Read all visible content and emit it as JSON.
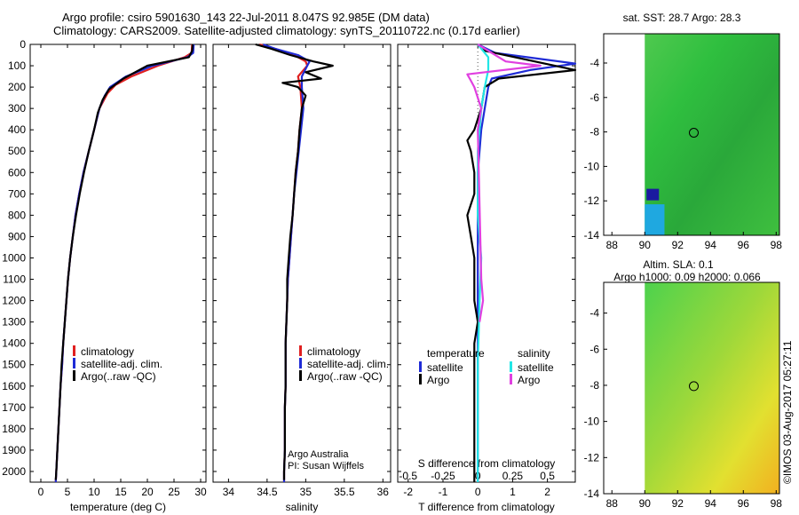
{
  "header": {
    "line1": "Argo profile: csiro 5901630_143 22-Jul-2011 8.047S 92.985E (DM data)",
    "line2": "Climatology: CARS2009. Satellite-adjusted climatology: synTS_20110722.nc (0.17d earlier)"
  },
  "colors": {
    "climatology": "#e02020",
    "satellite": "#1f2bd6",
    "argo": "#000000",
    "sal_satellite": "#22e6e6",
    "sal_argo": "#e040e0"
  },
  "depth_ticks": [
    0,
    100,
    200,
    300,
    400,
    500,
    600,
    700,
    800,
    900,
    1000,
    1100,
    1200,
    1300,
    1400,
    1500,
    1600,
    1700,
    1800,
    1900,
    2000
  ],
  "chart_data": [
    {
      "type": "line",
      "id": "temperature",
      "xlabel": "temperature (deg C)",
      "xlim": [
        -2,
        31
      ],
      "ylim": [
        2050,
        0
      ],
      "xticks": [
        0,
        5,
        10,
        15,
        20,
        25,
        30
      ],
      "legend": [
        "climatology",
        "satellite-adj. clim.",
        "Argo(..raw -QC)"
      ],
      "series": [
        {
          "name": "climatology",
          "color": "#e02020",
          "points": [
            [
              28.4,
              0
            ],
            [
              28.3,
              40
            ],
            [
              27,
              60
            ],
            [
              22,
              100
            ],
            [
              17,
              150
            ],
            [
              14,
              190
            ],
            [
              12.5,
              230
            ],
            [
              11,
              300
            ],
            [
              10,
              400
            ],
            [
              9,
              500
            ],
            [
              8,
              600
            ],
            [
              7.2,
              700
            ],
            [
              6.5,
              800
            ],
            [
              6,
              900
            ],
            [
              5.5,
              1000
            ],
            [
              5.1,
              1100
            ],
            [
              4.8,
              1200
            ],
            [
              4.5,
              1300
            ],
            [
              4.2,
              1400
            ],
            [
              4,
              1500
            ],
            [
              3.7,
              1600
            ],
            [
              3.5,
              1700
            ],
            [
              3.3,
              1800
            ],
            [
              3.1,
              1900
            ],
            [
              2.9,
              2000
            ],
            [
              2.8,
              2050
            ]
          ]
        },
        {
          "name": "satellite-adj. clim.",
          "color": "#1f2bd6",
          "points": [
            [
              28.7,
              0
            ],
            [
              28.6,
              40
            ],
            [
              27.5,
              60
            ],
            [
              21,
              100
            ],
            [
              16,
              150
            ],
            [
              13,
              200
            ],
            [
              12,
              240
            ],
            [
              11,
              300
            ],
            [
              10,
              400
            ],
            [
              9,
              500
            ],
            [
              8,
              600
            ],
            [
              7.2,
              700
            ],
            [
              6.5,
              800
            ],
            [
              6,
              900
            ],
            [
              5.5,
              1000
            ],
            [
              5.1,
              1100
            ],
            [
              4.8,
              1200
            ],
            [
              4.5,
              1300
            ],
            [
              4.2,
              1400
            ],
            [
              4,
              1500
            ],
            [
              3.7,
              1600
            ],
            [
              3.5,
              1700
            ],
            [
              3.3,
              1800
            ],
            [
              3.1,
              1900
            ],
            [
              2.9,
              2000
            ],
            [
              2.8,
              2050
            ]
          ]
        },
        {
          "name": "Argo(..raw -QC)",
          "color": "#000000",
          "points": [
            [
              28.5,
              0
            ],
            [
              28.4,
              30
            ],
            [
              27.8,
              60
            ],
            [
              20,
              100
            ],
            [
              15.5,
              160
            ],
            [
              12.8,
              210
            ],
            [
              11.6,
              260
            ],
            [
              10.7,
              320
            ],
            [
              10,
              400
            ],
            [
              9,
              500
            ],
            [
              8.1,
              600
            ],
            [
              7.3,
              700
            ],
            [
              6.6,
              800
            ],
            [
              6,
              900
            ],
            [
              5.5,
              1000
            ],
            [
              5.1,
              1100
            ],
            [
              4.8,
              1200
            ],
            [
              4.5,
              1300
            ],
            [
              4.2,
              1400
            ],
            [
              3.9,
              1500
            ],
            [
              3.7,
              1600
            ],
            [
              3.5,
              1700
            ],
            [
              3.3,
              1800
            ],
            [
              3.1,
              1900
            ],
            [
              2.9,
              2000
            ],
            [
              2.8,
              2040
            ]
          ]
        }
      ]
    },
    {
      "type": "line",
      "id": "salinity",
      "xlabel": "salinity",
      "xlim": [
        33.8,
        36.1
      ],
      "ylim": [
        2050,
        0
      ],
      "xticks": [
        34,
        34.5,
        35,
        35.5,
        36
      ],
      "legend": [
        "climatology",
        "satellite-adj. clim.",
        "Argo(..raw -QC)"
      ],
      "annotations": [
        "Argo Australia",
        "PI: Susan Wijffels"
      ],
      "series": [
        {
          "name": "climatology",
          "color": "#e02020",
          "points": [
            [
              34.4,
              0
            ],
            [
              34.6,
              20
            ],
            [
              34.85,
              50
            ],
            [
              35.0,
              80
            ],
            [
              35.02,
              100
            ],
            [
              34.9,
              150
            ],
            [
              34.93,
              200
            ],
            [
              34.95,
              300
            ],
            [
              34.92,
              400
            ],
            [
              34.9,
              500
            ],
            [
              34.87,
              600
            ],
            [
              34.85,
              700
            ],
            [
              34.83,
              800
            ],
            [
              34.81,
              900
            ],
            [
              34.79,
              1000
            ],
            [
              34.77,
              1100
            ],
            [
              34.76,
              1200
            ],
            [
              34.75,
              1300
            ],
            [
              34.74,
              1400
            ],
            [
              34.74,
              1500
            ],
            [
              34.74,
              1600
            ],
            [
              34.73,
              1700
            ],
            [
              34.73,
              1800
            ],
            [
              34.73,
              1900
            ],
            [
              34.72,
              2000
            ],
            [
              34.72,
              2050
            ]
          ]
        },
        {
          "name": "satellite-adj. clim.",
          "color": "#1f2bd6",
          "points": [
            [
              34.45,
              0
            ],
            [
              34.6,
              20
            ],
            [
              34.9,
              50
            ],
            [
              35.05,
              80
            ],
            [
              35.02,
              100
            ],
            [
              34.95,
              150
            ],
            [
              34.95,
              200
            ],
            [
              34.97,
              300
            ],
            [
              34.94,
              400
            ],
            [
              34.91,
              500
            ],
            [
              34.88,
              600
            ],
            [
              34.85,
              700
            ],
            [
              34.83,
              800
            ],
            [
              34.81,
              900
            ],
            [
              34.79,
              1000
            ],
            [
              34.77,
              1100
            ],
            [
              34.76,
              1200
            ],
            [
              34.75,
              1300
            ],
            [
              34.74,
              1400
            ],
            [
              34.74,
              1500
            ],
            [
              34.74,
              1600
            ],
            [
              34.73,
              1700
            ],
            [
              34.73,
              1800
            ],
            [
              34.73,
              1900
            ],
            [
              34.72,
              2000
            ],
            [
              34.72,
              2050
            ]
          ]
        },
        {
          "name": "Argo(..raw -QC)",
          "color": "#000000",
          "points": [
            [
              34.35,
              0
            ],
            [
              34.55,
              20
            ],
            [
              34.8,
              50
            ],
            [
              35.1,
              80
            ],
            [
              35.35,
              100
            ],
            [
              35.0,
              130
            ],
            [
              35.2,
              160
            ],
            [
              34.7,
              180
            ],
            [
              34.9,
              200
            ],
            [
              35.0,
              240
            ],
            [
              34.95,
              300
            ],
            [
              34.92,
              400
            ],
            [
              34.9,
              500
            ],
            [
              34.87,
              600
            ],
            [
              34.85,
              700
            ],
            [
              34.83,
              800
            ],
            [
              34.8,
              900
            ],
            [
              34.78,
              1000
            ],
            [
              34.76,
              1100
            ],
            [
              34.76,
              1200
            ],
            [
              34.75,
              1300
            ],
            [
              34.74,
              1400
            ],
            [
              34.74,
              1500
            ],
            [
              34.74,
              1600
            ],
            [
              34.73,
              1700
            ],
            [
              34.73,
              1800
            ],
            [
              34.73,
              1900
            ],
            [
              34.72,
              2000
            ],
            [
              34.72,
              2040
            ]
          ]
        }
      ]
    },
    {
      "type": "line",
      "id": "differences",
      "xlabel_bottom": "T difference from climatology",
      "xlabel_top": "S difference from climatology",
      "xlim": [
        -2.3,
        2.8
      ],
      "ylim": [
        2050,
        0
      ],
      "xticks_bottom": [
        -2,
        -1,
        0,
        1,
        2
      ],
      "xticks_top": [
        {
          "label": "-0.5",
          "t": -2
        },
        {
          "label": "-0.25",
          "t": -1
        },
        {
          "label": "0",
          "t": 0
        },
        {
          "label": "0.25",
          "t": 1
        },
        {
          "label": "0.5",
          "t": 2
        }
      ],
      "legend": {
        "temperature": "temperature",
        "salinity": "salinity",
        "satellite": "satellite",
        "argo": "Argo"
      },
      "series": [
        {
          "name": "temperature satellite",
          "color": "#1f2bd6",
          "points": [
            [
              0,
              0
            ],
            [
              0.5,
              40
            ],
            [
              2.8,
              90
            ],
            [
              1.5,
              120
            ],
            [
              0.4,
              160
            ],
            [
              0.3,
              200
            ],
            [
              0.2,
              300
            ],
            [
              0.1,
              400
            ],
            [
              0,
              600
            ],
            [
              0,
              800
            ],
            [
              0,
              1000
            ],
            [
              0,
              1200
            ],
            [
              0,
              1400
            ],
            [
              0,
              1600
            ],
            [
              0,
              1800
            ],
            [
              0,
              2000
            ],
            [
              0,
              2050
            ]
          ]
        },
        {
          "name": "temperature Argo",
          "color": "#000000",
          "points": [
            [
              0,
              0
            ],
            [
              0.2,
              30
            ],
            [
              2.8,
              120
            ],
            [
              0.6,
              160
            ],
            [
              0.2,
              200
            ],
            [
              0.1,
              300
            ],
            [
              -0.1,
              400
            ],
            [
              -0.3,
              450
            ],
            [
              -0.2,
              500
            ],
            [
              -0.1,
              600
            ],
            [
              -0.1,
              700
            ],
            [
              -0.3,
              800
            ],
            [
              -0.2,
              900
            ],
            [
              -0.1,
              1000
            ],
            [
              -0.1,
              1100
            ],
            [
              -0.1,
              1200
            ],
            [
              0,
              1300
            ],
            [
              -0.1,
              1400
            ],
            [
              -0.1,
              1500
            ],
            [
              -0.1,
              1600
            ],
            [
              -0.1,
              1700
            ],
            [
              -0.1,
              1800
            ],
            [
              -0.1,
              1900
            ],
            [
              -0.1,
              2000
            ],
            [
              -0.1,
              2050
            ]
          ]
        },
        {
          "name": "salinity satellite",
          "color": "#22e6e6",
          "points": [
            [
              0,
              0
            ],
            [
              0.3,
              60
            ],
            [
              0.3,
              120
            ],
            [
              0.2,
              200
            ],
            [
              0.1,
              300
            ],
            [
              0.05,
              400
            ],
            [
              0,
              500
            ],
            [
              0,
              800
            ],
            [
              0.1,
              1000
            ],
            [
              0.05,
              1200
            ],
            [
              0,
              1500
            ],
            [
              0,
              1800
            ],
            [
              0,
              2050
            ]
          ]
        },
        {
          "name": "salinity Argo",
          "color": "#e040e0",
          "points": [
            [
              0,
              0
            ],
            [
              0.8,
              80
            ],
            [
              1.8,
              100
            ],
            [
              -0.3,
              140
            ],
            [
              -0.2,
              170
            ],
            [
              -0.1,
              200
            ],
            [
              0,
              250
            ],
            [
              0.1,
              300
            ],
            [
              0,
              400
            ],
            [
              0.1,
              1100
            ],
            [
              0.15,
              1200
            ],
            [
              0.05,
              1300
            ]
          ]
        }
      ]
    },
    {
      "type": "heatmap",
      "id": "sst-map",
      "title": "sat. SST: 28.7 Argo: 28.3",
      "xticks": [
        88,
        90,
        92,
        94,
        96,
        98
      ],
      "yticks": [
        -4,
        -6,
        -8,
        -10,
        -12,
        -14
      ],
      "xlim": [
        87.5,
        98.2
      ],
      "ylim": [
        -14,
        -2.3
      ],
      "argo_position": [
        92.985,
        -8.047
      ],
      "data_xmin": 90
    },
    {
      "type": "heatmap",
      "id": "sla-map",
      "title": "Altim. SLA: 0.1",
      "subtitle": "Argo h1000: 0.09 h2000: 0.066",
      "xticks": [
        88,
        90,
        92,
        94,
        96,
        98
      ],
      "yticks": [
        -4,
        -6,
        -8,
        -10,
        -12,
        -14
      ],
      "xlim": [
        87.5,
        98.2
      ],
      "ylim": [
        -14,
        -2.3
      ],
      "argo_position": [
        92.985,
        -8.047
      ],
      "data_xmin": 90
    }
  ],
  "footer": {
    "stamp": "©IMOS 03-Aug-2017 05:27:11"
  }
}
